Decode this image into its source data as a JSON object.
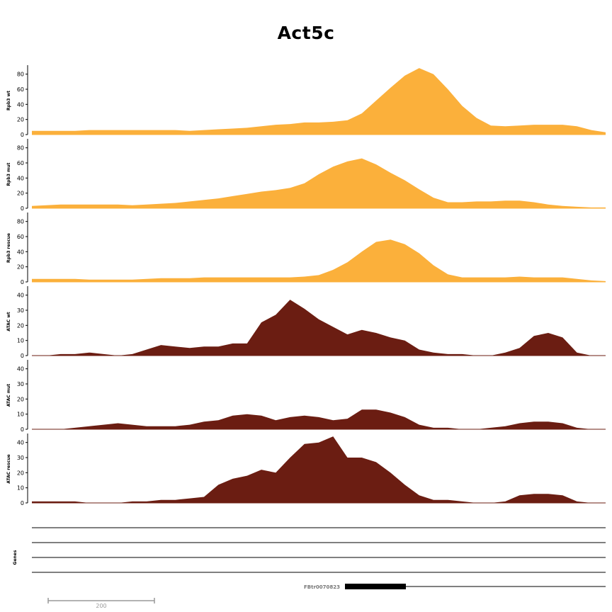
{
  "title": "Act5c",
  "colors": {
    "rpb3": "#FBB03B",
    "atac": "#6B1D12",
    "axis": "#000000",
    "scalebar": "#999999"
  },
  "chart_data": {
    "type": "area",
    "x_points": 41,
    "tracks": [
      {
        "name": "Rpb3 wt",
        "color": "#FBB03B",
        "yticks": [
          0,
          20,
          40,
          60,
          80
        ],
        "ylim": [
          0,
          90
        ],
        "values": [
          5,
          5,
          5,
          5,
          6,
          6,
          6,
          6,
          6,
          6,
          6,
          5,
          6,
          7,
          8,
          9,
          11,
          13,
          14,
          16,
          16,
          17,
          19,
          28,
          45,
          62,
          78,
          88,
          80,
          60,
          38,
          22,
          12,
          11,
          12,
          13,
          13,
          13,
          11,
          6,
          3
        ]
      },
      {
        "name": "Rpb3 mut",
        "color": "#FBB03B",
        "yticks": [
          0,
          20,
          40,
          60,
          80
        ],
        "ylim": [
          0,
          90
        ],
        "values": [
          3,
          4,
          5,
          5,
          5,
          5,
          5,
          4,
          5,
          6,
          7,
          9,
          11,
          13,
          16,
          19,
          22,
          24,
          27,
          33,
          45,
          55,
          62,
          66,
          58,
          47,
          37,
          25,
          14,
          8,
          8,
          9,
          9,
          10,
          10,
          8,
          5,
          3,
          2,
          1,
          1
        ]
      },
      {
        "name": "Rpb3 rescue",
        "color": "#FBB03B",
        "yticks": [
          0,
          20,
          40,
          60,
          80
        ],
        "ylim": [
          0,
          90
        ],
        "values": [
          4,
          4,
          4,
          4,
          3,
          3,
          3,
          3,
          4,
          5,
          5,
          5,
          6,
          6,
          6,
          6,
          6,
          6,
          6,
          7,
          9,
          16,
          26,
          40,
          53,
          56,
          50,
          38,
          22,
          10,
          6,
          6,
          6,
          6,
          7,
          6,
          6,
          6,
          4,
          2,
          1
        ]
      },
      {
        "name": "ATAC wt",
        "color": "#6B1D12",
        "yticks": [
          0,
          10,
          20,
          30,
          40
        ],
        "ylim": [
          0,
          45
        ],
        "values": [
          0,
          0,
          1,
          1,
          2,
          1,
          0,
          1,
          4,
          7,
          6,
          5,
          6,
          6,
          8,
          8,
          22,
          27,
          37,
          31,
          24,
          19,
          14,
          17,
          15,
          12,
          10,
          4,
          2,
          1,
          1,
          0,
          0,
          2,
          5,
          13,
          15,
          12,
          2,
          0,
          0
        ]
      },
      {
        "name": "ATAC mut",
        "color": "#6B1D12",
        "yticks": [
          0,
          10,
          20,
          30,
          40
        ],
        "ylim": [
          0,
          45
        ],
        "values": [
          0,
          0,
          0,
          1,
          2,
          3,
          4,
          3,
          2,
          2,
          2,
          3,
          5,
          6,
          9,
          10,
          9,
          6,
          8,
          9,
          8,
          6,
          7,
          13,
          13,
          11,
          8,
          3,
          1,
          1,
          0,
          0,
          1,
          2,
          4,
          5,
          5,
          4,
          1,
          0,
          0
        ]
      },
      {
        "name": "ATAC rescue",
        "color": "#6B1D12",
        "yticks": [
          0,
          10,
          20,
          30,
          40
        ],
        "ylim": [
          0,
          45
        ],
        "values": [
          1,
          1,
          1,
          1,
          0,
          0,
          0,
          1,
          1,
          2,
          2,
          3,
          4,
          12,
          16,
          18,
          22,
          20,
          30,
          39,
          40,
          44,
          30,
          30,
          27,
          20,
          12,
          5,
          2,
          2,
          1,
          0,
          0,
          1,
          5,
          6,
          6,
          5,
          1,
          0,
          0
        ]
      }
    ],
    "genes_label": "Genes",
    "transcript": {
      "name": "FBtr0070823"
    },
    "scale_bar": {
      "label": "200"
    }
  }
}
